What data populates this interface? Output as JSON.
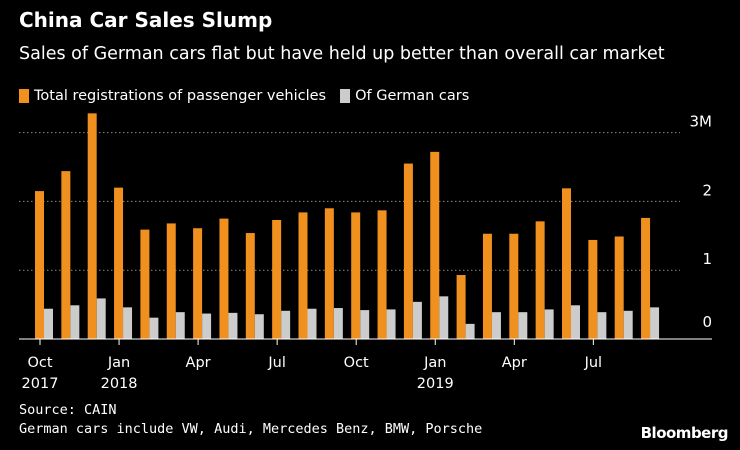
{
  "header": {
    "title": "China Car Sales Slump",
    "subtitle": "Sales of German cars flat but have held up better than overall car market"
  },
  "legend": {
    "items": [
      {
        "label": "Total registrations of passenger vehicles",
        "color": "#f0901e"
      },
      {
        "label": "Of German cars",
        "color": "#cccccc"
      }
    ]
  },
  "chart_data": {
    "type": "bar",
    "title": "China Car Sales Slump",
    "subtitle": "Sales of German cars flat but have held up better than overall car market",
    "xlabel": "",
    "ylabel": "",
    "y_axis_side": "right",
    "ylim": [
      0,
      3.2
    ],
    "yticks": [
      0,
      1,
      2,
      3
    ],
    "ytick_labels": [
      "0",
      "1",
      "2",
      "3M"
    ],
    "grid": true,
    "months": [
      "2017-10",
      "2017-11",
      "2017-12",
      "2018-01",
      "2018-02",
      "2018-03",
      "2018-04",
      "2018-05",
      "2018-06",
      "2018-07",
      "2018-08",
      "2018-09",
      "2018-10",
      "2018-11",
      "2018-12",
      "2019-01",
      "2019-02",
      "2019-03",
      "2019-04",
      "2019-05",
      "2019-06",
      "2019-07",
      "2019-08",
      "2019-09",
      "2019-10"
    ],
    "xtick_labels": [
      {
        "index": 0,
        "label": "Oct",
        "year": "2017"
      },
      {
        "index": 3,
        "label": "Jan",
        "year": "2018"
      },
      {
        "index": 6,
        "label": "Apr",
        "year": ""
      },
      {
        "index": 9,
        "label": "Jul",
        "year": ""
      },
      {
        "index": 12,
        "label": "Oct",
        "year": ""
      },
      {
        "index": 15,
        "label": "Jan",
        "year": "2019"
      },
      {
        "index": 18,
        "label": "Apr",
        "year": ""
      },
      {
        "index": 21,
        "label": "Jul",
        "year": ""
      }
    ],
    "series": [
      {
        "name": "Total registrations of passenger vehicles",
        "color": "#f0901e",
        "values": [
          2.15,
          2.44,
          3.28,
          2.2,
          1.59,
          1.68,
          1.61,
          1.75,
          1.54,
          1.73,
          1.84,
          1.9,
          1.84,
          1.87,
          2.55,
          2.72,
          0.93,
          1.53,
          1.53,
          1.71,
          2.19,
          1.44,
          1.49,
          1.76,
          null
        ]
      },
      {
        "name": "Of German cars",
        "color": "#cccccc",
        "values": [
          0.44,
          0.49,
          0.59,
          0.46,
          0.31,
          0.39,
          0.37,
          0.38,
          0.36,
          0.41,
          0.44,
          0.45,
          0.42,
          0.43,
          0.54,
          0.62,
          0.22,
          0.39,
          0.39,
          0.43,
          0.49,
          0.39,
          0.41,
          0.46,
          null
        ]
      }
    ]
  },
  "footer": {
    "source": "Source: CAIN",
    "note": "German cars include VW, Audi, Mercedes Benz, BMW, Porsche",
    "brand": "Bloomberg"
  }
}
